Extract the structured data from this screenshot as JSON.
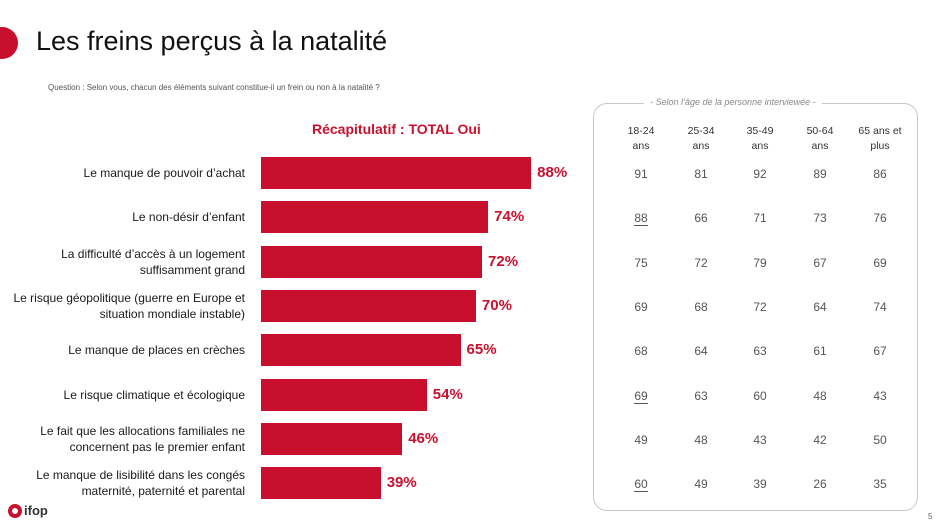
{
  "header": {
    "title": "Les freins perçus à la natalité",
    "question": "Question : Selon vous, chacun des éléments suivant constitue-il un frein ou non à la natalité ?"
  },
  "chart_data": {
    "type": "bar",
    "orientation": "horizontal",
    "title": "Récapitulatif : TOTAL Oui",
    "categories": [
      "Le manque de pouvoir d’achat",
      "Le non-désir d’enfant",
      "La difficulté d’accès à un logement suffisamment grand",
      "Le risque géopolitique (guerre en Europe et situation mondiale instable)",
      "Le manque de places en crèches",
      "Le risque climatique et écologique",
      "Le fait que les allocations familiales ne concernent pas le premier enfant",
      "Le manque de lisibilité dans les congés maternité, paternité et parental"
    ],
    "values": [
      88,
      74,
      72,
      70,
      65,
      54,
      46,
      39
    ],
    "value_labels": [
      "88%",
      "74%",
      "72%",
      "70%",
      "65%",
      "54%",
      "46%",
      "39%"
    ],
    "xlim": [
      0,
      100
    ],
    "bar_color": "#c8102e"
  },
  "age_table": {
    "caption": "- Selon l’âge de la personne interviewée -",
    "columns": [
      [
        "18-24",
        "ans"
      ],
      [
        "25-34",
        "ans"
      ],
      [
        "35-49",
        "ans"
      ],
      [
        "50-64",
        "ans"
      ],
      [
        "65 ans et",
        "plus"
      ]
    ],
    "rows": [
      [
        "91",
        "81",
        "92",
        "89",
        "86"
      ],
      [
        "88",
        "66",
        "71",
        "73",
        "76"
      ],
      [
        "75",
        "72",
        "79",
        "67",
        "69"
      ],
      [
        "69",
        "68",
        "72",
        "64",
        "74"
      ],
      [
        "68",
        "64",
        "63",
        "61",
        "67"
      ],
      [
        "69",
        "63",
        "60",
        "48",
        "43"
      ],
      [
        "49",
        "48",
        "43",
        "42",
        "50"
      ],
      [
        "60",
        "49",
        "39",
        "26",
        "35"
      ]
    ],
    "underlined": [
      [
        1,
        0
      ],
      [
        5,
        0
      ],
      [
        7,
        0
      ]
    ]
  },
  "footer": {
    "logo": "ifop",
    "page": "5"
  },
  "colors": {
    "accent": "#c8102e"
  }
}
